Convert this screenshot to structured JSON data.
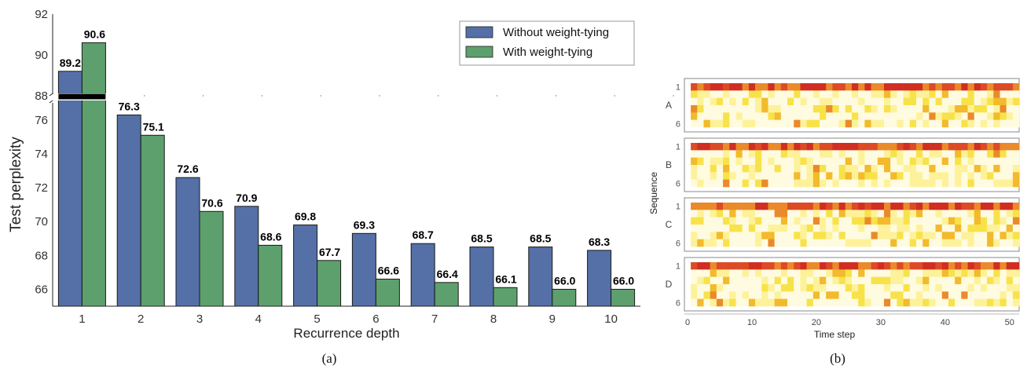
{
  "chart_data": [
    {
      "type": "bar",
      "ylabel": "Test perplexity",
      "xlabel": "Recurrence depth",
      "panel_caption": "(a)",
      "categories": [
        "1",
        "2",
        "3",
        "4",
        "5",
        "6",
        "7",
        "8",
        "9",
        "10"
      ],
      "series": [
        {
          "name": "Without weight-tying",
          "color": "#5470A6",
          "values": [
            89.2,
            76.3,
            72.6,
            70.9,
            69.8,
            69.3,
            68.7,
            68.5,
            68.5,
            68.3
          ]
        },
        {
          "name": "With weight-tying",
          "color": "#5DA06D",
          "values": [
            90.6,
            75.1,
            70.6,
            68.6,
            67.7,
            66.6,
            66.4,
            66.1,
            66.0,
            66.0
          ]
        }
      ],
      "value_labels": [
        [
          "89.2",
          "76.3",
          "72.6",
          "70.9",
          "69.8",
          "69.3",
          "68.7",
          "68.5",
          "68.5",
          "68.3"
        ],
        [
          "90.6",
          "75.1",
          "70.6",
          "68.6",
          "67.7",
          "66.6",
          "66.4",
          "66.1",
          "66.0",
          "66.0"
        ]
      ],
      "broken_axis": {
        "upper_ylim": [
          88,
          92
        ],
        "upper_ticks": [
          "88",
          "90",
          "92"
        ],
        "lower_ylim": [
          65,
          77.2
        ],
        "lower_ticks": [
          "66",
          "68",
          "70",
          "72",
          "74",
          "76"
        ]
      },
      "legend_position": "top-right"
    },
    {
      "type": "heatmap",
      "panel_caption": "(b)",
      "xlabel": "Time step",
      "ylabel": "Sequence",
      "x_ticks": [
        "0",
        "10",
        "20",
        "30",
        "40",
        "50"
      ],
      "xlim": [
        0,
        51
      ],
      "y_tick_labels": [
        "1",
        "6"
      ],
      "rows_per_panel": 6,
      "columns": 51,
      "panels": [
        "A",
        "B",
        "C",
        "D"
      ],
      "colormap": [
        "#fffbe0",
        "#fdf29a",
        "#f8e24a",
        "#f2ba2c",
        "#ea8a2b",
        "#dd4a26",
        "#d12e22"
      ]
    }
  ]
}
